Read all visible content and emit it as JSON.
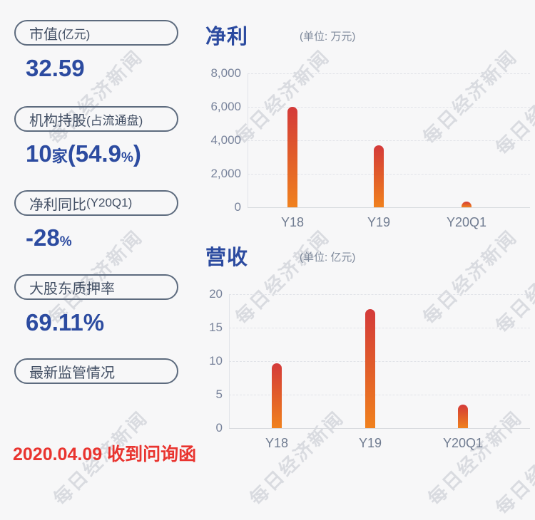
{
  "watermark": {
    "text": "每日经济新闻"
  },
  "colors": {
    "background": "#f7f7f8",
    "accent_blue": "#2c4ba0",
    "alert_red": "#e9342f",
    "pill_border": "#5d6b7e",
    "pill_text": "#414e63",
    "axis_text": "#78839b",
    "bar_gradient_top": "#d43a3a",
    "bar_gradient_bottom": "#f0811e"
  },
  "stats": [
    {
      "label_main": "市值",
      "label_sub": "(亿元)",
      "value_parts": [
        "32.59"
      ]
    },
    {
      "label_main": "机构持股",
      "label_sub": "(占流通盘)",
      "value_parts": [
        "10",
        "家",
        "(54.9",
        "%",
        ")"
      ]
    },
    {
      "label_main": "净利同比",
      "label_sub": "(Y20Q1)",
      "value_parts": [
        "-28",
        "%"
      ]
    },
    {
      "label_main": "大股东质押率",
      "label_sub": "",
      "value_parts": [
        "69.11%"
      ]
    },
    {
      "label_main": "最新监管情况",
      "label_sub": "",
      "value_parts": []
    }
  ],
  "announcement": {
    "text": "2020.04.09 收到问询函"
  },
  "chart_data": [
    {
      "type": "bar",
      "title": "净利",
      "unit_label": "(单位: 万元)",
      "categories": [
        "Y18",
        "Y19",
        "Y20Q1"
      ],
      "values": [
        6000,
        3700,
        350
      ],
      "ylim": [
        0,
        8000
      ],
      "ytick_labels": [
        "0",
        "2,000",
        "4,000",
        "6,000",
        "8,000"
      ],
      "xlabel": "",
      "ylabel": "",
      "grid": "horizontal-dashed",
      "legend": "none"
    },
    {
      "type": "bar",
      "title": "营收",
      "unit_label": "(单位: 亿元)",
      "categories": [
        "Y18",
        "Y19",
        "Y20Q1"
      ],
      "values": [
        9.7,
        17.8,
        3.5
      ],
      "ylim": [
        0,
        20
      ],
      "ytick_labels": [
        "0",
        "5",
        "10",
        "15",
        "20"
      ],
      "xlabel": "",
      "ylabel": "",
      "grid": "horizontal-dashed",
      "legend": "none"
    }
  ]
}
